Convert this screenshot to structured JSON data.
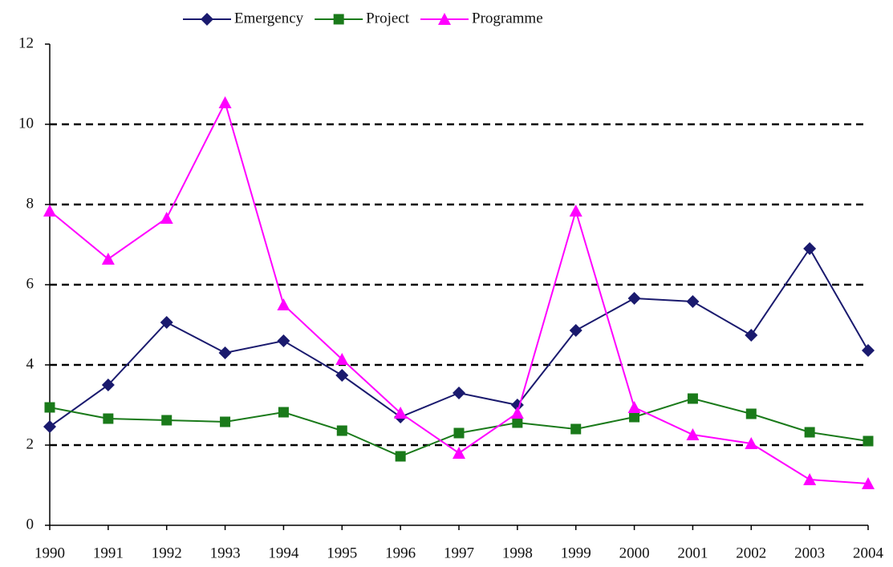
{
  "chart_data": {
    "type": "line",
    "categories": [
      "1990",
      "1991",
      "1992",
      "1993",
      "1994",
      "1995",
      "1996",
      "1997",
      "1998",
      "1999",
      "2000",
      "2001",
      "2002",
      "2003",
      "2004"
    ],
    "series": [
      {
        "name": "Emergency",
        "color": "#1a1a6e",
        "marker": "diamond",
        "values": [
          2.46,
          3.5,
          5.06,
          4.3,
          4.6,
          3.74,
          2.7,
          3.3,
          3.0,
          4.86,
          5.66,
          5.58,
          4.74,
          6.9,
          4.36
        ]
      },
      {
        "name": "Project",
        "color": "#1a7a1a",
        "marker": "square",
        "values": [
          2.94,
          2.66,
          2.62,
          2.58,
          2.82,
          2.36,
          1.72,
          2.3,
          2.56,
          2.4,
          2.7,
          3.16,
          2.78,
          2.32,
          2.1
        ]
      },
      {
        "name": "Programme",
        "color": "#ff00ff",
        "marker": "triangle",
        "values": [
          7.84,
          6.64,
          7.66,
          10.54,
          5.5,
          4.14,
          2.8,
          1.8,
          2.8,
          7.84,
          2.94,
          2.26,
          2.04,
          1.14,
          1.04
        ]
      }
    ],
    "ylim": [
      0,
      12
    ],
    "yticks": [
      0,
      2,
      4,
      6,
      8,
      10,
      12
    ],
    "grid": true,
    "legend": "top"
  }
}
